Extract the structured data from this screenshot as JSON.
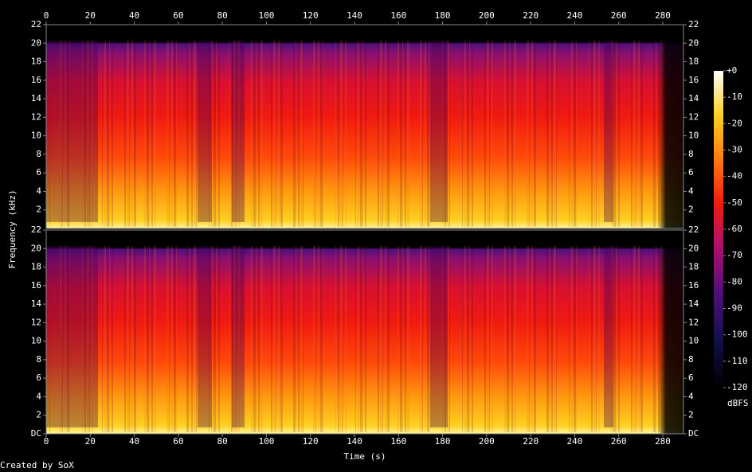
{
  "chart_data": {
    "type": "spectrogram",
    "xlabel": "Time (s)",
    "ylabel": "Frequency (kHz)",
    "xlim": [
      0,
      289.4
    ],
    "xticks": [
      0,
      20,
      40,
      60,
      80,
      100,
      120,
      140,
      160,
      180,
      200,
      220,
      240,
      260,
      280
    ],
    "ylim": [
      0,
      22
    ],
    "channels": [
      {
        "yticks": [
          2,
          4,
          6,
          8,
          10,
          12,
          14,
          16,
          18,
          20,
          22
        ]
      },
      {
        "yticks": [
          {
            "value": 0,
            "label": "DC"
          },
          2,
          4,
          6,
          8,
          10,
          12,
          14,
          16,
          18,
          20,
          22
        ]
      }
    ],
    "colorbar": {
      "label": "dBFS",
      "lim": [
        -120,
        0
      ],
      "ticks": [
        {
          "value": 0,
          "label": "+0"
        },
        -10,
        -20,
        -30,
        -40,
        -50,
        -60,
        -70,
        -80,
        -90,
        -100,
        -110,
        -120
      ]
    },
    "footer": "Created by SoX"
  }
}
